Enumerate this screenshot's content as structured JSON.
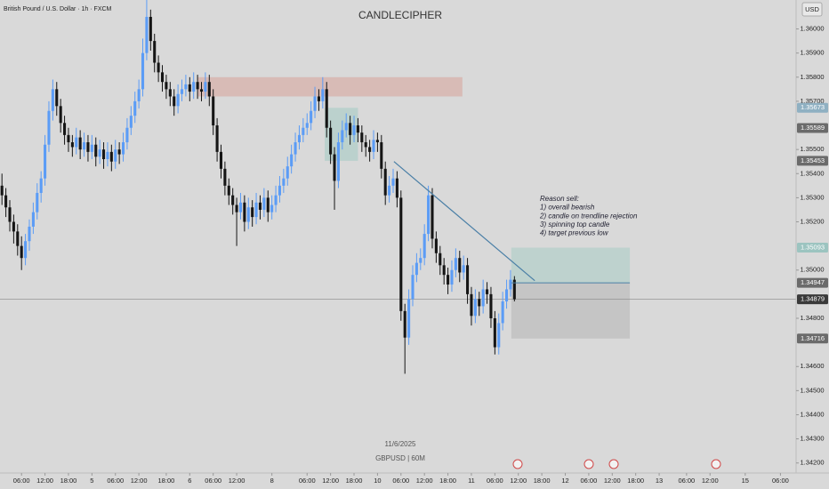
{
  "chart_data": {
    "type": "candlestick",
    "title": "British Pound / U.S. Dollar · 1h · FXCM",
    "watermark": "CANDLECIPHER",
    "currency": "USD",
    "date_label": "11/6/2025",
    "symbol_label": "GBPUSD | 60M",
    "annotation": [
      "Reason sell:",
      "1) overall bearish",
      "2) candle on trendline rejection",
      "3) spinning top candle",
      "4) target previous low"
    ],
    "up_color": "#5b9cf6",
    "down_color": "#151515",
    "xlim": [
      -0.5,
      203
    ],
    "ylim": [
      1.3414,
      1.3612
    ],
    "grid": false,
    "xticks": [
      {
        "value": 5,
        "label": "06:00"
      },
      {
        "value": 11,
        "label": "12:00"
      },
      {
        "value": 17,
        "label": "18:00"
      },
      {
        "value": 23,
        "label": "5"
      },
      {
        "value": 29,
        "label": "06:00"
      },
      {
        "value": 35,
        "label": "12:00"
      },
      {
        "value": 42,
        "label": "18:00"
      },
      {
        "value": 48,
        "label": "6"
      },
      {
        "value": 54,
        "label": "06:00"
      },
      {
        "value": 60,
        "label": "12:00"
      },
      {
        "value": 69,
        "label": "8"
      },
      {
        "value": 78,
        "label": "06:00"
      },
      {
        "value": 84,
        "label": "12:00"
      },
      {
        "value": 90,
        "label": "18:00"
      },
      {
        "value": 96,
        "label": "10"
      },
      {
        "value": 102,
        "label": "06:00"
      },
      {
        "value": 108,
        "label": "12:00"
      },
      {
        "value": 114,
        "label": "18:00"
      },
      {
        "value": 120,
        "label": "11"
      },
      {
        "value": 126,
        "label": "06:00"
      },
      {
        "value": 132,
        "label": "12:00"
      },
      {
        "value": 138,
        "label": "18:00"
      },
      {
        "value": 144,
        "label": "12"
      },
      {
        "value": 150,
        "label": "06:00"
      },
      {
        "value": 156,
        "label": "12:00"
      },
      {
        "value": 162,
        "label": "18:00"
      },
      {
        "value": 168,
        "label": "13"
      },
      {
        "value": 175,
        "label": "06:00"
      },
      {
        "value": 181,
        "label": "12:00"
      },
      {
        "value": 190,
        "label": "15"
      },
      {
        "value": 199,
        "label": "06:00"
      }
    ],
    "yticks": [
      {
        "value": 1.36,
        "label": "1.36000"
      },
      {
        "value": 1.359,
        "label": "1.35900"
      },
      {
        "value": 1.358,
        "label": "1.35800"
      },
      {
        "value": 1.357,
        "label": "1.35700"
      },
      {
        "value": 1.355,
        "label": "1.35500"
      },
      {
        "value": 1.354,
        "label": "1.35400"
      },
      {
        "value": 1.353,
        "label": "1.35300"
      },
      {
        "value": 1.352,
        "label": "1.35200"
      },
      {
        "value": 1.35,
        "label": "1.35000"
      },
      {
        "value": 1.348,
        "label": "1.34800"
      },
      {
        "value": 1.346,
        "label": "1.34600"
      },
      {
        "value": 1.345,
        "label": "1.34500"
      },
      {
        "value": 1.344,
        "label": "1.34400"
      },
      {
        "value": 1.343,
        "label": "1.34300"
      },
      {
        "value": 1.342,
        "label": "1.34200"
      }
    ],
    "price_labels": [
      {
        "value": 1.35673,
        "color": "#8fb0c2"
      },
      {
        "value": 1.35589,
        "color": "#6b6b6b"
      },
      {
        "value": 1.35453,
        "color": "#6b6b6b"
      },
      {
        "value": 1.35093,
        "color": "#9cc4c0"
      },
      {
        "value": 1.34947,
        "color": "#6b6b6b"
      },
      {
        "value": 1.34879,
        "color": "#3a3a3a"
      },
      {
        "value": 1.34716,
        "color": "#6b6b6b"
      }
    ],
    "zones": [
      {
        "x": [
          50,
          117.7
        ],
        "y": [
          1.3572,
          1.358
        ],
        "color": "rgba(214,150,140,0.45)"
      },
      {
        "x": [
          82.5,
          91
        ],
        "y": [
          1.35453,
          1.35673
        ],
        "color": "rgba(150,200,190,0.45)"
      },
      {
        "x": [
          130.2,
          160.5
        ],
        "y": [
          1.34947,
          1.35093
        ],
        "color": "rgba(150,200,190,0.4)"
      },
      {
        "x": [
          130.2,
          160.5
        ],
        "y": [
          1.34716,
          1.34947
        ],
        "color": "rgba(160,160,160,0.35)"
      }
    ],
    "trendline": {
      "x": [
        100.2,
        136.2
      ],
      "y": [
        1.3545,
        1.34956
      ],
      "color": "#4a7fa6"
    },
    "entry_line": {
      "x": [
        130.2,
        160.5
      ],
      "y": 1.34947,
      "color": "#4a7fa6"
    },
    "last_price_line": 1.34879,
    "ohlc": [
      [
        1.3535,
        1.354,
        1.3527,
        1.3531
      ],
      [
        1.3531,
        1.3534,
        1.3522,
        1.3526
      ],
      [
        1.3526,
        1.3529,
        1.3516,
        1.352
      ],
      [
        1.352,
        1.3523,
        1.3511,
        1.3516
      ],
      [
        1.3516,
        1.3519,
        1.3506,
        1.351
      ],
      [
        1.351,
        1.3514,
        1.35,
        1.3505
      ],
      [
        1.3505,
        1.3515,
        1.3502,
        1.3512
      ],
      [
        1.3512,
        1.3521,
        1.3508,
        1.3518
      ],
      [
        1.3518,
        1.3528,
        1.3515,
        1.3524
      ],
      [
        1.3524,
        1.3536,
        1.3521,
        1.3532
      ],
      [
        1.3532,
        1.3541,
        1.3528,
        1.3538
      ],
      [
        1.3538,
        1.3556,
        1.3535,
        1.3552
      ],
      [
        1.3552,
        1.357,
        1.3549,
        1.3566
      ],
      [
        1.3566,
        1.3579,
        1.3562,
        1.3575
      ],
      [
        1.3575,
        1.3578,
        1.3564,
        1.3568
      ],
      [
        1.3568,
        1.3571,
        1.3557,
        1.3561
      ],
      [
        1.3561,
        1.3564,
        1.3552,
        1.3556
      ],
      [
        1.3556,
        1.3559,
        1.3549,
        1.3553
      ],
      [
        1.3553,
        1.3556,
        1.3547,
        1.3551
      ],
      [
        1.3551,
        1.3559,
        1.3548,
        1.3555
      ],
      [
        1.3555,
        1.3558,
        1.3546,
        1.355
      ],
      [
        1.355,
        1.3557,
        1.3547,
        1.3553
      ],
      [
        1.3553,
        1.3556,
        1.3545,
        1.3549
      ],
      [
        1.3549,
        1.3556,
        1.3546,
        1.3552
      ],
      [
        1.3552,
        1.3555,
        1.3543,
        1.3547
      ],
      [
        1.3547,
        1.3554,
        1.3544,
        1.355
      ],
      [
        1.355,
        1.3553,
        1.3542,
        1.3546
      ],
      [
        1.3546,
        1.3553,
        1.3543,
        1.3549
      ],
      [
        1.3549,
        1.3552,
        1.3541,
        1.3545
      ],
      [
        1.3545,
        1.3554,
        1.3542,
        1.355
      ],
      [
        1.355,
        1.3553,
        1.3544,
        1.3548
      ],
      [
        1.3548,
        1.3557,
        1.3545,
        1.3553
      ],
      [
        1.3553,
        1.3563,
        1.355,
        1.3559
      ],
      [
        1.3559,
        1.3568,
        1.3556,
        1.3564
      ],
      [
        1.3564,
        1.3574,
        1.3561,
        1.357
      ],
      [
        1.357,
        1.3579,
        1.3567,
        1.3575
      ],
      [
        1.3575,
        1.3596,
        1.3572,
        1.359
      ],
      [
        1.359,
        1.3612,
        1.3587,
        1.3605
      ],
      [
        1.3605,
        1.3608,
        1.3591,
        1.3595
      ],
      [
        1.3595,
        1.3598,
        1.3582,
        1.3586
      ],
      [
        1.3586,
        1.3589,
        1.3578,
        1.3582
      ],
      [
        1.3582,
        1.3585,
        1.3574,
        1.3578
      ],
      [
        1.3578,
        1.3581,
        1.3571,
        1.3575
      ],
      [
        1.3575,
        1.3578,
        1.3568,
        1.3572
      ],
      [
        1.3572,
        1.3575,
        1.3564,
        1.3568
      ],
      [
        1.3568,
        1.3577,
        1.3565,
        1.3573
      ],
      [
        1.3573,
        1.3579,
        1.357,
        1.3575
      ],
      [
        1.3575,
        1.3581,
        1.3572,
        1.3577
      ],
      [
        1.3577,
        1.358,
        1.357,
        1.3574
      ],
      [
        1.3574,
        1.3582,
        1.3571,
        1.3578
      ],
      [
        1.3578,
        1.3581,
        1.3571,
        1.3575
      ],
      [
        1.3575,
        1.3578,
        1.357,
        1.3574
      ],
      [
        1.3574,
        1.3582,
        1.3571,
        1.3578
      ],
      [
        1.3578,
        1.3581,
        1.3568,
        1.3572
      ],
      [
        1.3572,
        1.3575,
        1.3556,
        1.356
      ],
      [
        1.356,
        1.3563,
        1.3545,
        1.3549
      ],
      [
        1.3549,
        1.3552,
        1.3538,
        1.3542
      ],
      [
        1.3542,
        1.3545,
        1.3531,
        1.3535
      ],
      [
        1.3535,
        1.3538,
        1.3527,
        1.3531
      ],
      [
        1.3531,
        1.3534,
        1.3523,
        1.3527
      ],
      [
        1.3527,
        1.353,
        1.351,
        1.3524
      ],
      [
        1.3524,
        1.3532,
        1.3521,
        1.3528
      ],
      [
        1.3528,
        1.3531,
        1.3516,
        1.352
      ],
      [
        1.352,
        1.353,
        1.3517,
        1.3526
      ],
      [
        1.3526,
        1.3529,
        1.3518,
        1.3522
      ],
      [
        1.3522,
        1.3532,
        1.3519,
        1.3528
      ],
      [
        1.3528,
        1.3531,
        1.3521,
        1.3525
      ],
      [
        1.3525,
        1.3534,
        1.3522,
        1.353
      ],
      [
        1.353,
        1.3533,
        1.352,
        1.3524
      ],
      [
        1.3524,
        1.3531,
        1.3521,
        1.3527
      ],
      [
        1.3527,
        1.3535,
        1.3524,
        1.3531
      ],
      [
        1.3531,
        1.3539,
        1.3528,
        1.3535
      ],
      [
        1.3535,
        1.3542,
        1.3532,
        1.3538
      ],
      [
        1.3538,
        1.3547,
        1.3535,
        1.3543
      ],
      [
        1.3543,
        1.3552,
        1.354,
        1.3548
      ],
      [
        1.3548,
        1.3557,
        1.3545,
        1.3553
      ],
      [
        1.3553,
        1.356,
        1.355,
        1.3556
      ],
      [
        1.3556,
        1.3563,
        1.3553,
        1.3559
      ],
      [
        1.3559,
        1.3565,
        1.3556,
        1.3561
      ],
      [
        1.3561,
        1.357,
        1.3558,
        1.3566
      ],
      [
        1.3566,
        1.3576,
        1.3563,
        1.3572
      ],
      [
        1.3572,
        1.3575,
        1.3566,
        1.357
      ],
      [
        1.357,
        1.358,
        1.3567,
        1.3575
      ],
      [
        1.3575,
        1.3578,
        1.3555,
        1.3559
      ],
      [
        1.3559,
        1.3562,
        1.3544,
        1.3548
      ],
      [
        1.3548,
        1.3551,
        1.3525,
        1.3537
      ],
      [
        1.3537,
        1.3557,
        1.3534,
        1.3553
      ],
      [
        1.3553,
        1.3562,
        1.355,
        1.3558
      ],
      [
        1.3558,
        1.3565,
        1.3555,
        1.3561
      ],
      [
        1.3561,
        1.3564,
        1.3552,
        1.3556
      ],
      [
        1.3556,
        1.3564,
        1.3553,
        1.356
      ],
      [
        1.356,
        1.3563,
        1.3553,
        1.3557
      ],
      [
        1.3557,
        1.356,
        1.3549,
        1.3553
      ],
      [
        1.3553,
        1.3556,
        1.3547,
        1.3551
      ],
      [
        1.3551,
        1.3554,
        1.3545,
        1.3549
      ],
      [
        1.3549,
        1.3558,
        1.3546,
        1.3554
      ],
      [
        1.3554,
        1.3557,
        1.3549,
        1.3553
      ],
      [
        1.3553,
        1.3556,
        1.3538,
        1.3542
      ],
      [
        1.3542,
        1.3545,
        1.3527,
        1.3531
      ],
      [
        1.3531,
        1.3539,
        1.3528,
        1.3535
      ],
      [
        1.3535,
        1.3542,
        1.3532,
        1.3538
      ],
      [
        1.3538,
        1.3541,
        1.3526,
        1.353
      ],
      [
        1.353,
        1.3533,
        1.3479,
        1.3483
      ],
      [
        1.3483,
        1.3486,
        1.3457,
        1.3472
      ],
      [
        1.3472,
        1.3492,
        1.3469,
        1.3488
      ],
      [
        1.3488,
        1.3502,
        1.3485,
        1.3498
      ],
      [
        1.3498,
        1.3507,
        1.3495,
        1.3503
      ],
      [
        1.3503,
        1.3509,
        1.35,
        1.3505
      ],
      [
        1.3505,
        1.3519,
        1.3502,
        1.3515
      ],
      [
        1.3515,
        1.3535,
        1.3512,
        1.3531
      ],
      [
        1.3531,
        1.3534,
        1.3509,
        1.3513
      ],
      [
        1.3513,
        1.3516,
        1.3503,
        1.3507
      ],
      [
        1.3507,
        1.351,
        1.3498,
        1.3502
      ],
      [
        1.3502,
        1.3505,
        1.3494,
        1.3498
      ],
      [
        1.3498,
        1.3501,
        1.349,
        1.3494
      ],
      [
        1.3494,
        1.3504,
        1.3491,
        1.35
      ],
      [
        1.35,
        1.3509,
        1.3497,
        1.3505
      ],
      [
        1.3505,
        1.3508,
        1.3495,
        1.3499
      ],
      [
        1.3499,
        1.3506,
        1.3496,
        1.3502
      ],
      [
        1.3502,
        1.3505,
        1.3486,
        1.349
      ],
      [
        1.349,
        1.3493,
        1.3477,
        1.3481
      ],
      [
        1.3481,
        1.3492,
        1.3478,
        1.3488
      ],
      [
        1.3488,
        1.3491,
        1.3481,
        1.3485
      ],
      [
        1.3485,
        1.3496,
        1.3482,
        1.3492
      ],
      [
        1.3492,
        1.3495,
        1.3486,
        1.349
      ],
      [
        1.349,
        1.3493,
        1.3476,
        1.348
      ],
      [
        1.348,
        1.3483,
        1.3465,
        1.3468
      ],
      [
        1.3468,
        1.3482,
        1.3465,
        1.3478
      ],
      [
        1.3478,
        1.3491,
        1.3475,
        1.3487
      ],
      [
        1.3487,
        1.3496,
        1.3484,
        1.3492
      ],
      [
        1.3492,
        1.35,
        1.3489,
        1.3496
      ],
      [
        1.3496,
        1.34975,
        1.3487,
        1.34879
      ]
    ]
  }
}
